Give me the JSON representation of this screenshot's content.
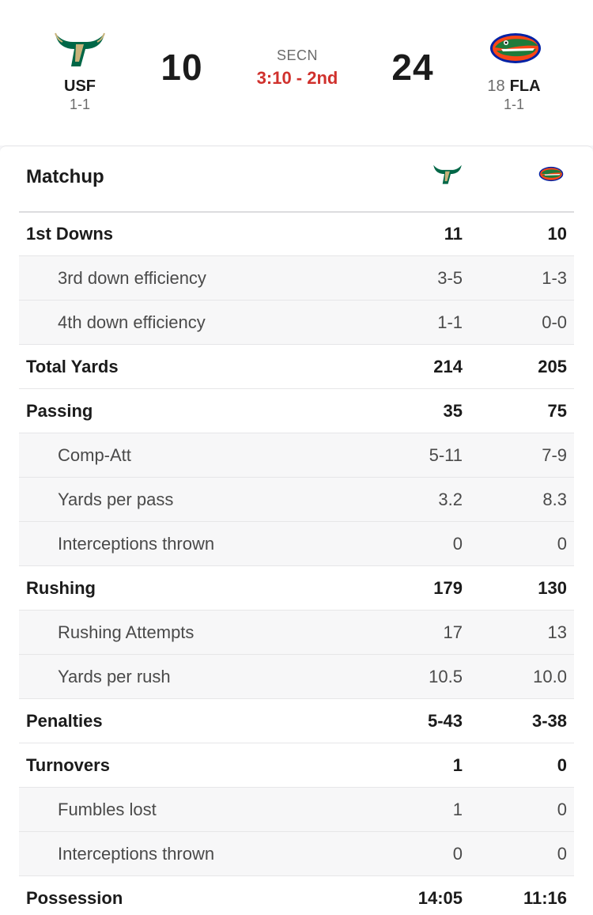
{
  "scoreboard": {
    "away": {
      "abbr": "USF",
      "record": "1-1",
      "score": "10",
      "logo": "usf-bull-horns-icon",
      "color": "#006747"
    },
    "home": {
      "rank": "18",
      "abbr": "FLA",
      "record": "1-1",
      "score": "24",
      "logo": "florida-gator-icon",
      "color": "#0021a5"
    },
    "network": "SECN",
    "clock": "3:10 - 2nd",
    "clock_color": "#d0312d"
  },
  "matchup": {
    "title": "Matchup",
    "rows": [
      {
        "label": "1st Downs",
        "away": "11",
        "home": "10",
        "type": "main"
      },
      {
        "label": "3rd down efficiency",
        "away": "3-5",
        "home": "1-3",
        "type": "sub"
      },
      {
        "label": "4th down efficiency",
        "away": "1-1",
        "home": "0-0",
        "type": "sub"
      },
      {
        "label": "Total Yards",
        "away": "214",
        "home": "205",
        "type": "main"
      },
      {
        "label": "Passing",
        "away": "35",
        "home": "75",
        "type": "main"
      },
      {
        "label": "Comp-Att",
        "away": "5-11",
        "home": "7-9",
        "type": "sub"
      },
      {
        "label": "Yards per pass",
        "away": "3.2",
        "home": "8.3",
        "type": "sub"
      },
      {
        "label": "Interceptions thrown",
        "away": "0",
        "home": "0",
        "type": "sub"
      },
      {
        "label": "Rushing",
        "away": "179",
        "home": "130",
        "type": "main"
      },
      {
        "label": "Rushing Attempts",
        "away": "17",
        "home": "13",
        "type": "sub"
      },
      {
        "label": "Yards per rush",
        "away": "10.5",
        "home": "10.0",
        "type": "sub"
      },
      {
        "label": "Penalties",
        "away": "5-43",
        "home": "3-38",
        "type": "main"
      },
      {
        "label": "Turnovers",
        "away": "1",
        "home": "0",
        "type": "main"
      },
      {
        "label": "Fumbles lost",
        "away": "1",
        "home": "0",
        "type": "sub"
      },
      {
        "label": "Interceptions thrown",
        "away": "0",
        "home": "0",
        "type": "sub"
      },
      {
        "label": "Possession",
        "away": "14:05",
        "home": "11:16",
        "type": "main"
      }
    ]
  }
}
